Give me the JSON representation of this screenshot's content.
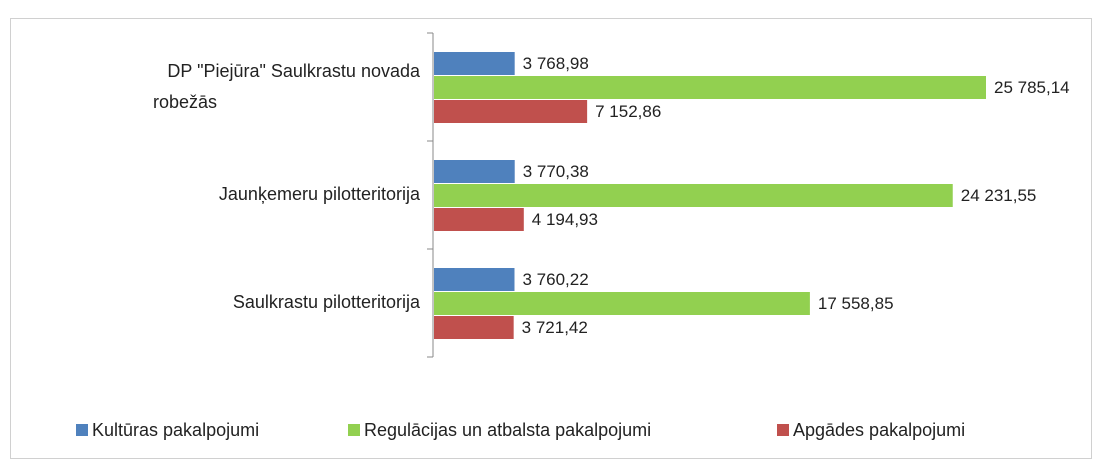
{
  "chart_data": {
    "type": "bar",
    "orientation": "horizontal",
    "categories": [
      [
        "DP \"Piejūra\" Saulkrastu novada",
        "robežās"
      ],
      "Jaunķemeru pilotteritorija",
      "Saulkrastu pilotteritorija"
    ],
    "series": [
      {
        "name": "Kultūras pakalpojumi",
        "color": "#4f81bd",
        "values": [
          3768.98,
          3770.38,
          3760.22
        ],
        "value_labels": [
          "3 768,98",
          "3 770,38",
          "3 760,22"
        ]
      },
      {
        "name": "Regulācijas un atbalsta pakalpojumi",
        "color": "#92d050",
        "values": [
          25785.14,
          24231.55,
          17558.85
        ],
        "value_labels": [
          "25 785,14",
          "24 231,55",
          "17 558,85"
        ]
      },
      {
        "name": "Apgādes pakalpojumi",
        "color": "#c0504d",
        "values": [
          7152.86,
          4194.93,
          3721.42
        ],
        "value_labels": [
          "7 152,86",
          "4 194,93",
          "3 721,42"
        ]
      }
    ],
    "legend": "bottom"
  }
}
